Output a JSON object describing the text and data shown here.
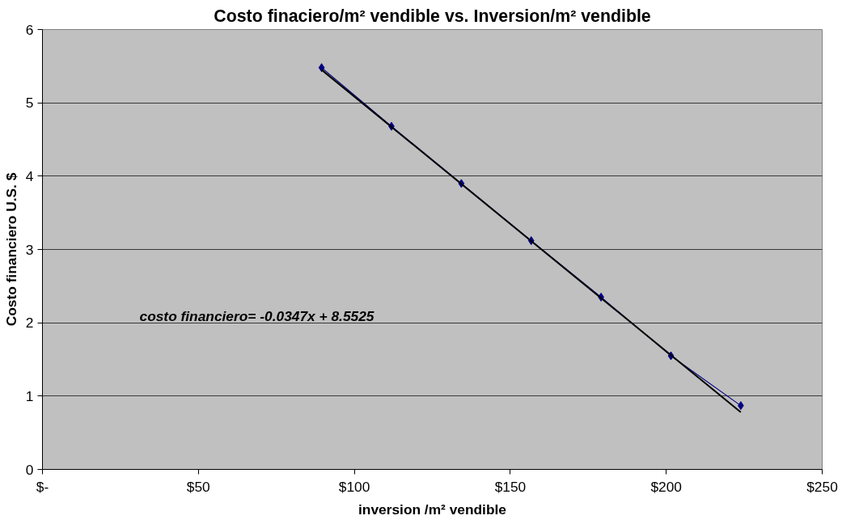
{
  "chart_data": {
    "type": "line",
    "title": "Costo finaciero/m² vendible vs. Inversion/m² vendible",
    "xlabel": "inversion /m² vendible",
    "ylabel": "Costo financiero U.S. $",
    "series": [
      {
        "color": "#000080",
        "marker": "diamond",
        "x": [
          89.5,
          111.9,
          134.3,
          156.7,
          179.1,
          201.5,
          223.9
        ],
        "values": [
          5.48,
          4.68,
          3.9,
          3.12,
          2.35,
          1.55,
          0.87
        ]
      },
      {
        "color": "#000000",
        "marker": "none",
        "x": [
          89.5,
          223.9
        ],
        "values": [
          5.45,
          0.78
        ]
      }
    ],
    "xlim": [
      0,
      250
    ],
    "xticks": [
      {
        "value": 0,
        "label": "$-"
      },
      {
        "value": 50,
        "label": "$50"
      },
      {
        "value": 100,
        "label": "$100"
      },
      {
        "value": 150,
        "label": "$150"
      },
      {
        "value": 200,
        "label": "$200"
      },
      {
        "value": 250,
        "label": "$250"
      }
    ],
    "ylim": [
      0,
      6
    ],
    "yticks": [
      0,
      1,
      2,
      3,
      4,
      5,
      6
    ],
    "grid": "y",
    "annotations": [
      "costo financiero= -0.0347x + 8.5525"
    ]
  }
}
